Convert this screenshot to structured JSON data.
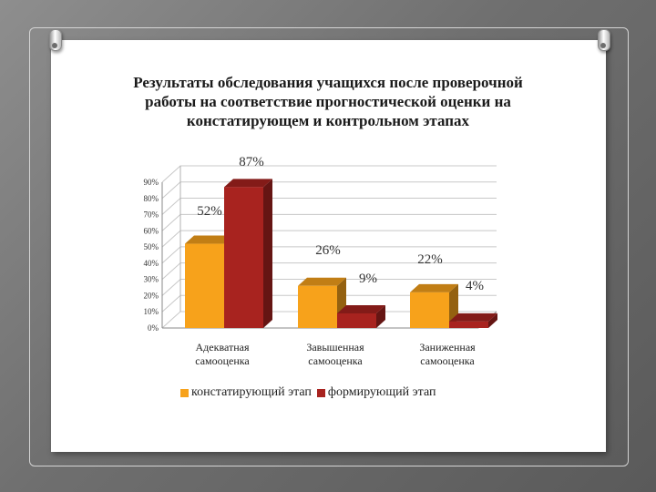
{
  "chart_data": {
    "type": "bar",
    "title": "Результаты обследования учащихся после проверочной работы на соответствие прогностической оценки на констатирующем и контрольном этапах",
    "title_lines": [
      "Результаты обследования учащихся после проверочной",
      "работы на соответствие прогностической оценки на",
      "констатирующем и контрольном этапах"
    ],
    "categories": [
      [
        "Адекватная",
        "самооценка"
      ],
      [
        "Завышенная",
        "самооценка"
      ],
      [
        "Заниженная",
        "самооценка"
      ]
    ],
    "series": [
      {
        "name": "констатирующий этап",
        "values": [
          52,
          26,
          22
        ],
        "labels": [
          "52%",
          "26%",
          "22%"
        ],
        "color": "#f7a21b"
      },
      {
        "name": "формирующий этап",
        "values": [
          87,
          9,
          4
        ],
        "labels": [
          "87%",
          "9%",
          "4%"
        ],
        "color": "#a8231f"
      }
    ],
    "y_ticks": [
      "0%",
      "10%",
      "20%",
      "30%",
      "40%",
      "50%",
      "60%",
      "70%",
      "80%",
      "90%"
    ],
    "ylim": [
      0,
      90
    ],
    "legend_position": "bottom",
    "grid": true,
    "style": "3d-bar"
  }
}
